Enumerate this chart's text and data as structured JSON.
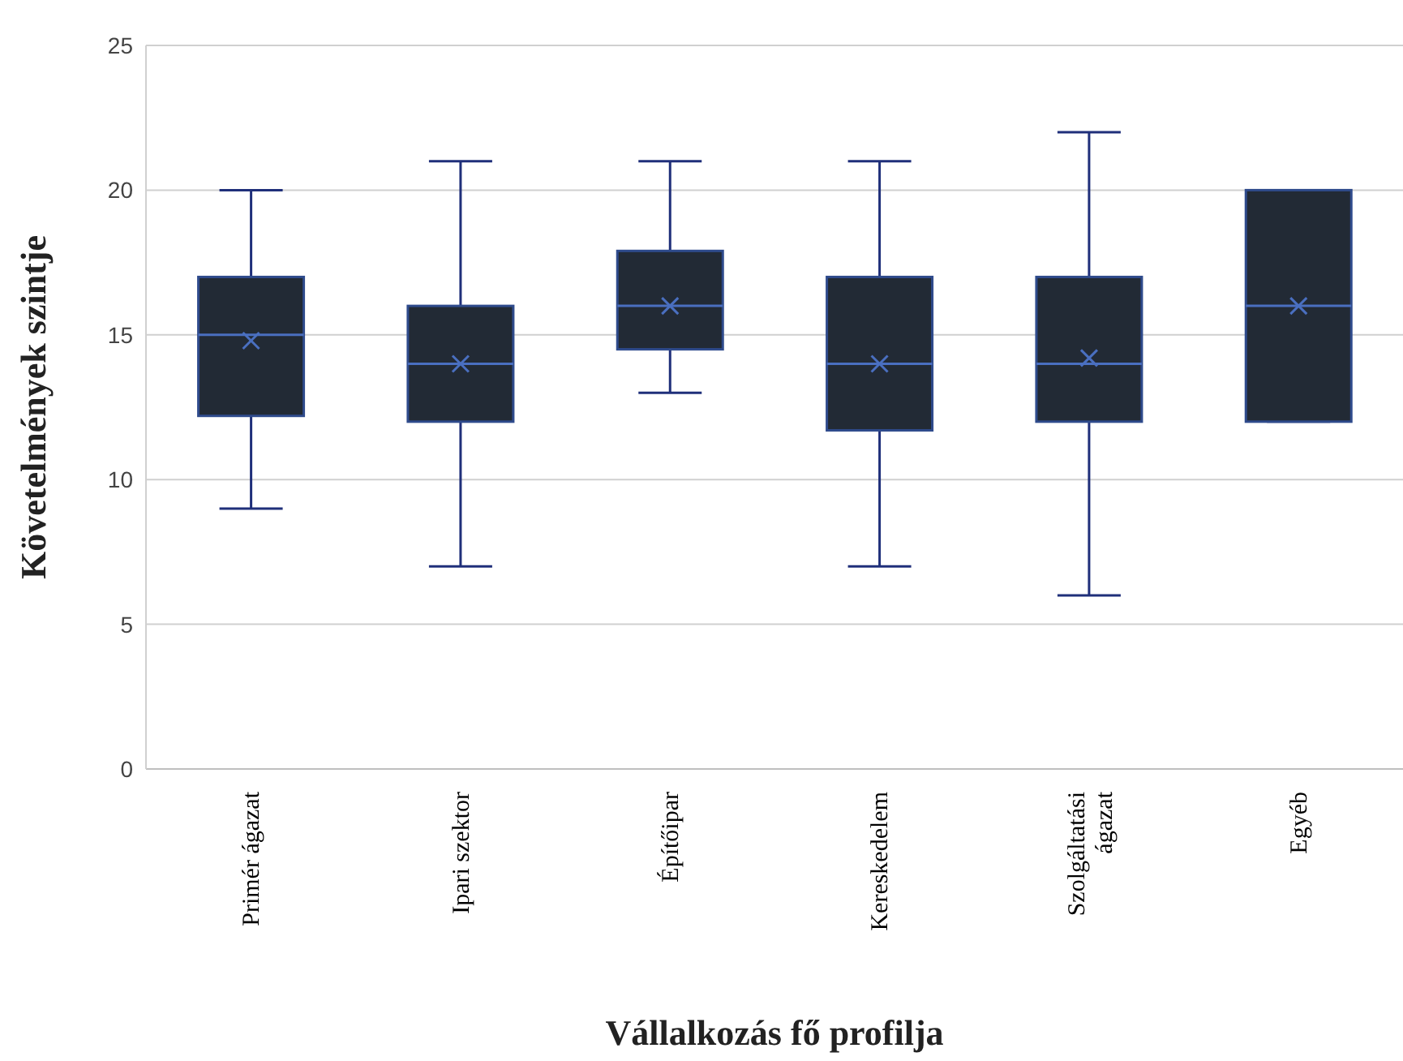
{
  "chart_data": {
    "type": "box",
    "xlabel": "Vállalkozás fő profilja",
    "ylabel": "Követelmények szintje",
    "categories": [
      "Primér ágazat",
      "Ipari szektor",
      "Építőipar",
      "Kereskedelem",
      "Szolgáltatási ágazat",
      "Egyéb"
    ],
    "boxes": [
      {
        "low": 9,
        "q1": 12.2,
        "median": 15,
        "q3": 17,
        "high": 20,
        "mean": 14.8
      },
      {
        "low": 7,
        "q1": 12,
        "median": 14,
        "q3": 16,
        "high": 21,
        "mean": 14
      },
      {
        "low": 13,
        "q1": 14.5,
        "median": 16,
        "q3": 17.9,
        "high": 21,
        "mean": 16
      },
      {
        "low": 7,
        "q1": 11.7,
        "median": 14,
        "q3": 17,
        "high": 21,
        "mean": 14
      },
      {
        "low": 6,
        "q1": 12,
        "median": 14,
        "q3": 17,
        "high": 22,
        "mean": 14.2
      },
      {
        "low": 12,
        "q1": 12,
        "median": 16,
        "q3": 20,
        "high": 20,
        "mean": 16
      }
    ],
    "color": "#222a35",
    "ylim": [
      0,
      25
    ],
    "yticks": [
      0,
      5,
      10,
      15,
      20,
      25
    ],
    "grid": "y"
  }
}
